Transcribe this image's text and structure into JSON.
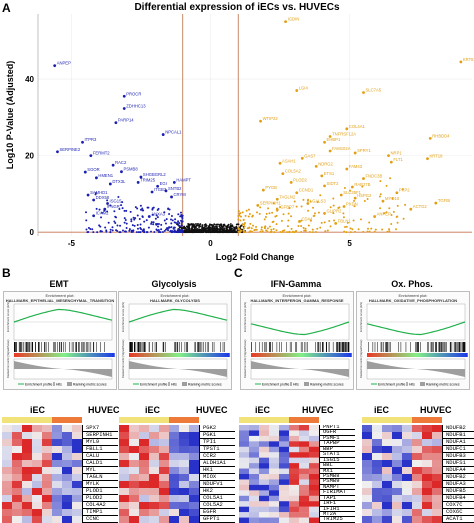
{
  "panel_a": {
    "letter": "A",
    "title": "Differential expression of iECs vs. HUVECs",
    "xlabel": "Log2 Fold Change",
    "ylabel": "Log10 P-Value (Adjusted)"
  },
  "panel_b": {
    "letter": "B"
  },
  "panel_c": {
    "letter": "C"
  },
  "gsea_panels": [
    {
      "title": "EMT",
      "plot_title": "Enrichment plot:",
      "gene_set": "HALLMARK_EPITHELIAL_MESENCHYMAL_TRANSITION",
      "curve": "up"
    },
    {
      "title": "Glycolysis",
      "plot_title": "Enrichment plot:",
      "gene_set": "HALLMARK_GLYCOLYSIS",
      "curve": "up"
    },
    {
      "title": "IFN-Gamma",
      "plot_title": "Enrichment plot:",
      "gene_set": "HALLMARK_INTERFERON_GAMMA_RESPONSE",
      "curve": "down"
    },
    {
      "title": "Ox. Phos.",
      "plot_title": "Enrichment plot:",
      "gene_set": "HALLMARK_OXIDATIVE_PHOSPHORYLATION",
      "curve": "down"
    }
  ],
  "gsea_common": {
    "es_label": "Enrichment score (ES)",
    "rank_label": "Ranked list metric (Signal2Noise)",
    "legend_es": "Enrichment profile",
    "legend_hits": "Hits",
    "legend_rank": "Ranking metric scores"
  },
  "heatmaps": [
    {
      "iec_label": "iEC",
      "huvec_label": "HUVEC",
      "genes": [
        "SPX7",
        "SERPINH1",
        "MYL9",
        "FBLL1",
        "CALU",
        "CALD1",
        "MYL",
        "TAGLN",
        "MYLK",
        "PLOD1",
        "PLOD2",
        "COL4A2",
        "TIMP1",
        "CCNC"
      ]
    },
    {
      "iec_label": "iEC",
      "huvec_label": "HUVEC",
      "genes": [
        "PGK2",
        "PGK1",
        "TPI1",
        "TPST1",
        "CCR2",
        "ALDH1A1",
        "HK1",
        "MIOX",
        "NDUFV1",
        "HK2",
        "COL5A1",
        "COL5A2",
        "EGFR",
        "GFPT1"
      ]
    },
    {
      "iec_label": "iEC",
      "huvec_label": "HUVEC",
      "genes": [
        "PNPT1",
        "OGFR",
        "PSMF1",
        "TAPBP",
        "BBP",
        "STAT1",
        "ISG15",
        "BBL",
        "MX1",
        "PSMB8",
        "PSMB9",
        "NAMPT",
        "FIRIMAT",
        "TAP1",
        "IRF1",
        "IFIH1",
        "MT2A",
        "TRIM25"
      ]
    },
    {
      "iec_label": "iEC",
      "huvec_label": "HUVEC",
      "genes": [
        "NDUFB2",
        "NDUFB1",
        "NDUFA1",
        "NDUFC1",
        "NDUFB3",
        "NDUFS1",
        "NDUFA4",
        "NDUFB2",
        "NDUFA3",
        "NDUFB5",
        "NDUFB4",
        "COX7C",
        "COX6C",
        "ACAT1"
      ]
    }
  ],
  "chart_data": {
    "type": "scatter",
    "title": "Differential expression of iECs vs. HUVECs",
    "xlabel": "Log2 Fold Change",
    "ylabel": "Log10 P-Value (Adjusted)",
    "xlim": [
      -6.2,
      9.4
    ],
    "ylim": [
      -1,
      57
    ],
    "x_ticks": [
      -5,
      0,
      5
    ],
    "y_ticks": [
      0,
      20,
      40
    ],
    "thresholds_x": [
      -1,
      1
    ],
    "colors": {
      "up": "#e29f14",
      "down": "#1a1fb0",
      "ns": "#111111",
      "threshold": "#c98a6a"
    },
    "labeled_points": [
      {
        "label": "ANPEP",
        "x": -5.6,
        "y": 43.5,
        "group": "down"
      },
      {
        "label": "PROCR",
        "x": -3.1,
        "y": 35.5,
        "group": "down"
      },
      {
        "label": "ZDHHC13",
        "x": -3.1,
        "y": 32.3,
        "group": "down"
      },
      {
        "label": "PARP14",
        "x": -3.4,
        "y": 28.6,
        "group": "down"
      },
      {
        "label": "ITPR3",
        "x": -4.6,
        "y": 23.5,
        "group": "down"
      },
      {
        "label": "SERPINE2",
        "x": -5.5,
        "y": 21.0,
        "group": "down"
      },
      {
        "label": "FERMT2",
        "x": -4.3,
        "y": 20.0,
        "group": "down"
      },
      {
        "label": "NPCAL1",
        "x": -1.7,
        "y": 25.5,
        "group": "down"
      },
      {
        "label": "RAC2",
        "x": -3.5,
        "y": 17.5,
        "group": "down"
      },
      {
        "label": "PSMB8",
        "x": -3.2,
        "y": 15.8,
        "group": "down"
      },
      {
        "label": "SGOR",
        "x": -4.5,
        "y": 15.7,
        "group": "down"
      },
      {
        "label": "SHGBGRL2",
        "x": -2.5,
        "y": 14.4,
        "group": "down"
      },
      {
        "label": "HMEN1",
        "x": -4.1,
        "y": 14.2,
        "group": "down"
      },
      {
        "label": "TRIM25",
        "x": -2.6,
        "y": 13.0,
        "group": "down"
      },
      {
        "label": "HAMPT",
        "x": -1.3,
        "y": 13.0,
        "group": "down"
      },
      {
        "label": "DTX3L",
        "x": -3.6,
        "y": 12.6,
        "group": "down"
      },
      {
        "label": "EGI",
        "x": -1.9,
        "y": 12.0,
        "group": "down"
      },
      {
        "label": "ITGB3",
        "x": -2.1,
        "y": 10.5,
        "group": "down"
      },
      {
        "label": "SAMHD1",
        "x": -4.4,
        "y": 9.7,
        "group": "down"
      },
      {
        "label": "SNTB2",
        "x": -1.6,
        "y": 10.8,
        "group": "down"
      },
      {
        "label": "DDX58",
        "x": -4.2,
        "y": 8.4,
        "group": "down"
      },
      {
        "label": "ISG15",
        "x": -3.7,
        "y": 7.5,
        "group": "down"
      },
      {
        "label": "CRYM",
        "x": -1.4,
        "y": 9.2,
        "group": "down"
      },
      {
        "label": "ICAM2",
        "x": -4.2,
        "y": 4.3,
        "group": "down"
      },
      {
        "label": "IFNGR",
        "x": -3.8,
        "y": 6.0,
        "group": "down"
      },
      {
        "label": "ANXA3",
        "x": -2.2,
        "y": 4.1,
        "group": "down"
      },
      {
        "label": "IGDIN",
        "x": 2.7,
        "y": 55.0,
        "group": "up"
      },
      {
        "label": "KRT8",
        "x": 9.0,
        "y": 44.5,
        "group": "up"
      },
      {
        "label": "LGI4",
        "x": 3.1,
        "y": 37.0,
        "group": "up"
      },
      {
        "label": "SLC7A5",
        "x": 5.5,
        "y": 36.5,
        "group": "up"
      },
      {
        "label": "WTIP22",
        "x": 1.8,
        "y": 29.0,
        "group": "up"
      },
      {
        "label": "COL4A1",
        "x": 4.9,
        "y": 27.0,
        "group": "up"
      },
      {
        "label": "TNFRSF12A",
        "x": 4.3,
        "y": 25.0,
        "group": "up"
      },
      {
        "label": "EHBP1",
        "x": 4.1,
        "y": 23.5,
        "group": "up"
      },
      {
        "label": "RHBDD4",
        "x": 7.9,
        "y": 24.5,
        "group": "up"
      },
      {
        "label": "KRT18",
        "x": 7.8,
        "y": 19.2,
        "group": "up"
      },
      {
        "label": "FLT1",
        "x": 6.5,
        "y": 18.3,
        "group": "up"
      },
      {
        "label": "FAM102A",
        "x": 4.3,
        "y": 21.2,
        "group": "up"
      },
      {
        "label": "SPRY1",
        "x": 5.2,
        "y": 20.7,
        "group": "up"
      },
      {
        "label": "NRP1",
        "x": 6.4,
        "y": 20.0,
        "group": "up"
      },
      {
        "label": "GAS7",
        "x": 3.3,
        "y": 19.3,
        "group": "up"
      },
      {
        "label": "ASAH1",
        "x": 2.5,
        "y": 18.0,
        "group": "up"
      },
      {
        "label": "NDRG2",
        "x": 3.8,
        "y": 17.2,
        "group": "up"
      },
      {
        "label": "FAM43",
        "x": 4.9,
        "y": 16.5,
        "group": "up"
      },
      {
        "label": "COL5A2",
        "x": 2.6,
        "y": 15.3,
        "group": "up"
      },
      {
        "label": "ETS1",
        "x": 4.0,
        "y": 14.7,
        "group": "up"
      },
      {
        "label": "FNDC3B",
        "x": 5.5,
        "y": 14.0,
        "group": "up"
      },
      {
        "label": "PLOD2",
        "x": 2.9,
        "y": 13.0,
        "group": "up"
      },
      {
        "label": "SIDT2",
        "x": 4.1,
        "y": 12.1,
        "group": "up"
      },
      {
        "label": "RAB27B",
        "x": 5.1,
        "y": 11.8,
        "group": "up"
      },
      {
        "label": "PYGB",
        "x": 1.9,
        "y": 11.0,
        "group": "up"
      },
      {
        "label": "CCND1",
        "x": 3.1,
        "y": 10.3,
        "group": "up"
      },
      {
        "label": "SLC35F1",
        "x": 4.7,
        "y": 9.7,
        "group": "up"
      },
      {
        "label": "PKP2",
        "x": 6.7,
        "y": 10.3,
        "group": "up"
      },
      {
        "label": "TAGLN2",
        "x": 2.4,
        "y": 8.6,
        "group": "up"
      },
      {
        "label": "HSPG2",
        "x": 5.2,
        "y": 8.9,
        "group": "up"
      },
      {
        "label": "MYO10",
        "x": 6.2,
        "y": 8.1,
        "group": "up"
      },
      {
        "label": "TGFBI",
        "x": 8.1,
        "y": 7.6,
        "group": "up"
      },
      {
        "label": "LGALS3",
        "x": 3.5,
        "y": 7.5,
        "group": "up"
      },
      {
        "label": "SERPINH1",
        "x": 1.7,
        "y": 7.0,
        "group": "up"
      },
      {
        "label": "PXDN",
        "x": 4.8,
        "y": 6.7,
        "group": "up"
      },
      {
        "label": "ACTG2",
        "x": 7.2,
        "y": 6.0,
        "group": "up"
      },
      {
        "label": "IGFBP7",
        "x": 2.4,
        "y": 5.9,
        "group": "up"
      },
      {
        "label": "GLIPR2",
        "x": 4.1,
        "y": 4.9,
        "group": "up"
      },
      {
        "label": "ANPEP",
        "x": 5.9,
        "y": 4.1,
        "group": "up"
      },
      {
        "label": "CD44",
        "x": 3.2,
        "y": 2.8,
        "group": "up"
      },
      {
        "label": "FBLN1",
        "x": 4.5,
        "y": 2.3,
        "group": "up"
      }
    ]
  }
}
